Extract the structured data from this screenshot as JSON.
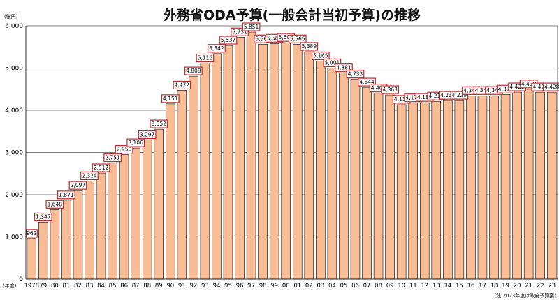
{
  "chart_data": {
    "type": "bar",
    "title": "外務省ODA予算(一般会計当初予算)の推移",
    "y_unit_label": "(億円)",
    "x_unit_label": "(年度)",
    "note": "(注:2023年度は政府予算案)",
    "ylim": [
      0,
      6000
    ],
    "yticks": [
      "0",
      "1,000",
      "2,000",
      "3,000",
      "4,000",
      "5,000",
      "6,000"
    ],
    "grid": true,
    "legend": "none",
    "bar_color": "#f9bd95",
    "label_border_color": "#c0282a",
    "categories": [
      "1978",
      "79",
      "80",
      "81",
      "82",
      "83",
      "84",
      "85",
      "86",
      "87",
      "88",
      "89",
      "90",
      "91",
      "92",
      "93",
      "94",
      "95",
      "96",
      "97",
      "98",
      "99",
      "00",
      "01",
      "02",
      "03",
      "04",
      "05",
      "06",
      "07",
      "08",
      "09",
      "10",
      "11",
      "12",
      "13",
      "14",
      "15",
      "16",
      "17",
      "18",
      "19",
      "20",
      "21",
      "22",
      "23"
    ],
    "values": [
      962,
      1347,
      1648,
      1871,
      2097,
      2324,
      2512,
      2751,
      2950,
      3106,
      3297,
      3552,
      4151,
      4472,
      4808,
      5116,
      5342,
      5537,
      5731,
      5851,
      5566,
      5582,
      5601,
      5565,
      5389,
      5165,
      5001,
      4881,
      4733,
      4544,
      4402,
      4363,
      4134,
      4170,
      4180,
      4211,
      4230,
      4229,
      4342,
      4343,
      4344,
      4376,
      4429,
      4498,
      4428,
      4428
    ],
    "data_labels": [
      "962",
      "1,347",
      "1,648",
      "1,871",
      "2,097",
      "2,324",
      "2,512",
      "2,751",
      "2,950",
      "3,106",
      "3,297",
      "3,552",
      "4,151",
      "4,472",
      "4,808",
      "5,116",
      "5,342",
      "5,537",
      "5,731",
      "5,851",
      "5,566",
      "5,582",
      "5,601",
      "5,565",
      "5,389",
      "5,165",
      "5,001",
      "4,881",
      "4,733",
      "4,544",
      "4,402",
      "4,363",
      "4,134",
      "4,170",
      "4,180",
      "4,211",
      "4,230",
      "4,229",
      "4,342",
      "4,343",
      "4,344",
      "4,376",
      "4,429",
      "4,498",
      "4,428",
      "4,428"
    ]
  }
}
